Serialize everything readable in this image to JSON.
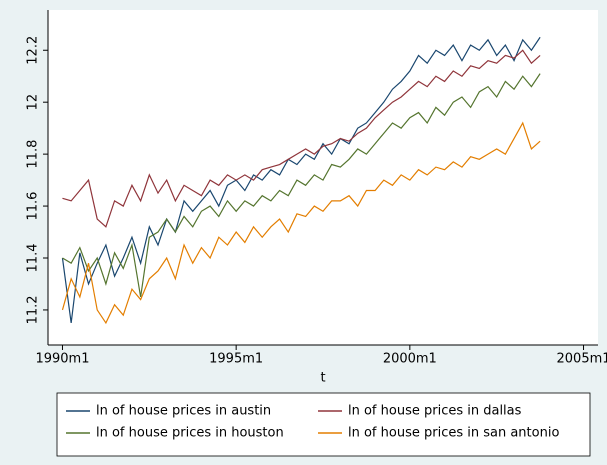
{
  "chart_data": {
    "type": "line",
    "x_label": "t",
    "x": [
      360,
      363,
      366,
      369,
      372,
      375,
      378,
      381,
      384,
      387,
      390,
      393,
      396,
      399,
      402,
      405,
      408,
      411,
      414,
      417,
      420,
      423,
      426,
      429,
      432,
      435,
      438,
      441,
      444,
      447,
      450,
      453,
      456,
      459,
      462,
      465,
      468,
      471,
      474,
      477,
      480,
      483,
      486,
      489,
      492,
      495,
      498,
      501,
      504,
      507,
      510,
      513,
      516,
      519,
      522,
      525
    ],
    "series": [
      {
        "name": "ln of house prices in austin",
        "color": "#1a476f",
        "values": [
          11.4,
          11.15,
          11.42,
          11.3,
          11.38,
          11.45,
          11.33,
          11.4,
          11.48,
          11.38,
          11.52,
          11.45,
          11.55,
          11.5,
          11.62,
          11.58,
          11.62,
          11.66,
          11.6,
          11.68,
          11.7,
          11.66,
          11.72,
          11.7,
          11.74,
          11.72,
          11.78,
          11.76,
          11.8,
          11.78,
          11.84,
          11.8,
          11.86,
          11.84,
          11.9,
          11.92,
          11.96,
          12.0,
          12.05,
          12.08,
          12.12,
          12.18,
          12.15,
          12.2,
          12.18,
          12.22,
          12.16,
          12.22,
          12.2,
          12.24,
          12.18,
          12.22,
          12.16,
          12.24,
          12.2,
          12.25
        ]
      },
      {
        "name": "ln of house prices in dallas",
        "color": "#90353b",
        "values": [
          11.63,
          11.62,
          11.66,
          11.7,
          11.55,
          11.52,
          11.62,
          11.6,
          11.68,
          11.62,
          11.72,
          11.65,
          11.7,
          11.62,
          11.68,
          11.66,
          11.64,
          11.7,
          11.68,
          11.72,
          11.7,
          11.72,
          11.7,
          11.74,
          11.75,
          11.76,
          11.78,
          11.8,
          11.82,
          11.8,
          11.83,
          11.84,
          11.86,
          11.85,
          11.88,
          11.9,
          11.94,
          11.97,
          12.0,
          12.02,
          12.05,
          12.08,
          12.06,
          12.1,
          12.08,
          12.12,
          12.1,
          12.14,
          12.13,
          12.16,
          12.15,
          12.18,
          12.17,
          12.2,
          12.15,
          12.18
        ]
      },
      {
        "name": "ln of house prices in houston",
        "color": "#55752f",
        "values": [
          11.4,
          11.38,
          11.44,
          11.35,
          11.4,
          11.3,
          11.42,
          11.36,
          11.45,
          11.25,
          11.48,
          11.5,
          11.55,
          11.5,
          11.56,
          11.52,
          11.58,
          11.6,
          11.56,
          11.62,
          11.58,
          11.62,
          11.6,
          11.64,
          11.62,
          11.66,
          11.64,
          11.7,
          11.68,
          11.72,
          11.7,
          11.76,
          11.75,
          11.78,
          11.82,
          11.8,
          11.84,
          11.88,
          11.92,
          11.9,
          11.94,
          11.96,
          11.92,
          11.98,
          11.95,
          12.0,
          12.02,
          11.98,
          12.04,
          12.06,
          12.02,
          12.08,
          12.05,
          12.1,
          12.06,
          12.11
        ]
      },
      {
        "name": "ln of house prices in san antonio",
        "color": "#e37e00",
        "values": [
          11.2,
          11.32,
          11.25,
          11.38,
          11.2,
          11.15,
          11.22,
          11.18,
          11.28,
          11.24,
          11.32,
          11.35,
          11.4,
          11.32,
          11.45,
          11.38,
          11.44,
          11.4,
          11.48,
          11.45,
          11.5,
          11.46,
          11.52,
          11.48,
          11.52,
          11.55,
          11.5,
          11.57,
          11.56,
          11.6,
          11.58,
          11.62,
          11.62,
          11.64,
          11.6,
          11.66,
          11.66,
          11.7,
          11.68,
          11.72,
          11.7,
          11.74,
          11.72,
          11.75,
          11.74,
          11.77,
          11.75,
          11.79,
          11.78,
          11.8,
          11.82,
          11.8,
          11.86,
          11.92,
          11.82,
          11.85
        ]
      }
    ],
    "xlim": [
      355,
      545
    ],
    "xticks": [
      {
        "value": 360,
        "label": "1990m1"
      },
      {
        "value": 420,
        "label": "1995m1"
      },
      {
        "value": 480,
        "label": "2000m1"
      },
      {
        "value": 540,
        "label": "2005m1"
      }
    ],
    "ylim": [
      11.065,
      12.355
    ],
    "yticks": [
      11.2,
      11.4,
      11.6,
      11.8,
      12,
      12.2
    ],
    "grid": false,
    "legend_position": "bottom"
  }
}
